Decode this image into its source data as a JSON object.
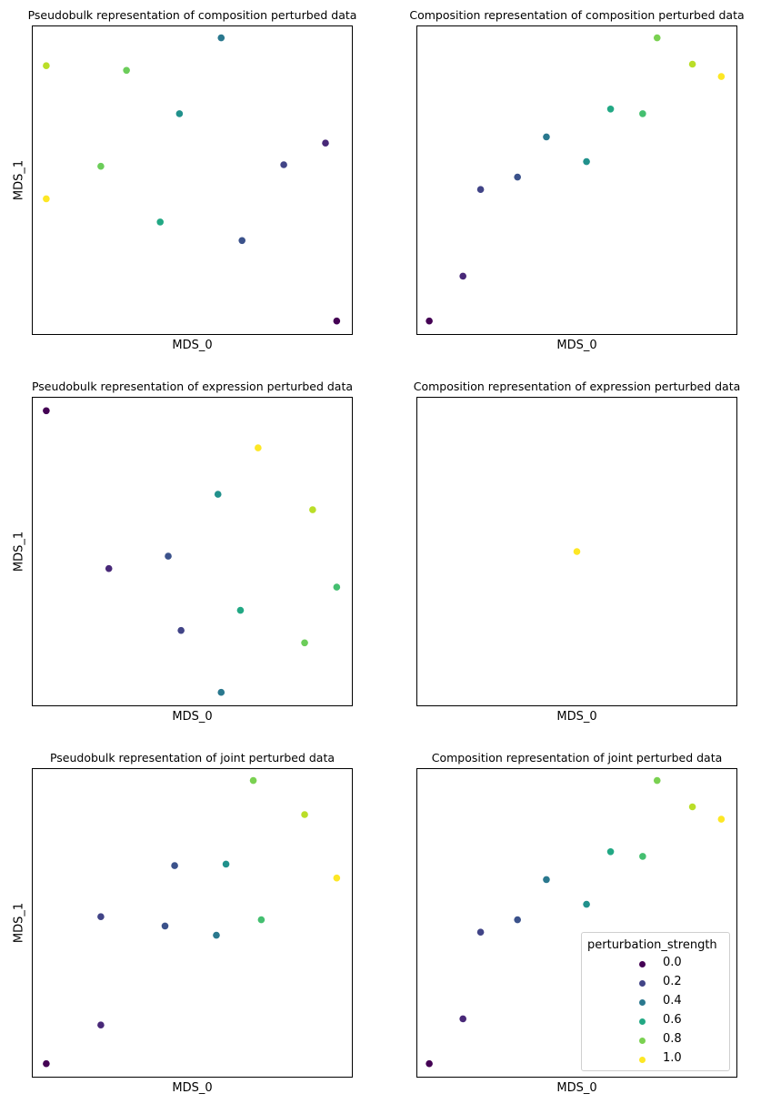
{
  "legend": {
    "title": "perturbation_strength",
    "entries": [
      {
        "label": "0.0",
        "color": "#440154"
      },
      {
        "label": "0.2",
        "color": "#414487"
      },
      {
        "label": "0.4",
        "color": "#2a788e"
      },
      {
        "label": "0.6",
        "color": "#22a884"
      },
      {
        "label": "0.8",
        "color": "#7ad151"
      },
      {
        "label": "1.0",
        "color": "#fde725"
      }
    ]
  },
  "chart_data": [
    {
      "type": "scatter",
      "title": "Pseudobulk representation of composition perturbed data",
      "xlabel": "MDS_0",
      "ylabel": "MDS_1",
      "xlim": [
        0,
        100
      ],
      "ylim": [
        0,
        100
      ],
      "ticks": "hidden",
      "points": [
        {
          "x": 4.5,
          "y": 87,
          "color": "#bade28"
        },
        {
          "x": 29.5,
          "y": 85.5,
          "color": "#6ccd5a"
        },
        {
          "x": 59,
          "y": 96,
          "color": "#2a788e"
        },
        {
          "x": 46,
          "y": 71.5,
          "color": "#21918c"
        },
        {
          "x": 21.5,
          "y": 54.5,
          "color": "#6ccd5a"
        },
        {
          "x": 4.5,
          "y": 44,
          "color": "#fde725"
        },
        {
          "x": 40,
          "y": 36.5,
          "color": "#22a884"
        },
        {
          "x": 65.5,
          "y": 30.5,
          "color": "#3b528b"
        },
        {
          "x": 78.5,
          "y": 55,
          "color": "#414487"
        },
        {
          "x": 91.5,
          "y": 62,
          "color": "#482878"
        },
        {
          "x": 95,
          "y": 4.5,
          "color": "#440154"
        }
      ]
    },
    {
      "type": "scatter",
      "title": "Composition representation of composition perturbed data",
      "xlabel": "MDS_0",
      "ylabel": "",
      "xlim": [
        0,
        100
      ],
      "ylim": [
        0,
        100
      ],
      "ticks": "hidden",
      "points": [
        {
          "x": 4,
          "y": 4.5,
          "color": "#440154"
        },
        {
          "x": 14.5,
          "y": 19,
          "color": "#482878"
        },
        {
          "x": 20,
          "y": 47,
          "color": "#414487"
        },
        {
          "x": 31.5,
          "y": 51,
          "color": "#3b528b"
        },
        {
          "x": 40.5,
          "y": 64,
          "color": "#2a788e"
        },
        {
          "x": 53,
          "y": 56,
          "color": "#21918c"
        },
        {
          "x": 60.5,
          "y": 73,
          "color": "#22a884"
        },
        {
          "x": 70.5,
          "y": 71.5,
          "color": "#44bf70"
        },
        {
          "x": 75,
          "y": 96,
          "color": "#7ad151"
        },
        {
          "x": 86,
          "y": 87.5,
          "color": "#bade28"
        },
        {
          "x": 95,
          "y": 83.5,
          "color": "#fde725"
        }
      ]
    },
    {
      "type": "scatter",
      "title": "Pseudobulk representation of expression perturbed data",
      "xlabel": "MDS_0",
      "ylabel": "MDS_1",
      "xlim": [
        0,
        100
      ],
      "ylim": [
        0,
        100
      ],
      "ticks": "hidden",
      "points": [
        {
          "x": 4.5,
          "y": 95.5,
          "color": "#440154"
        },
        {
          "x": 24,
          "y": 44.5,
          "color": "#482878"
        },
        {
          "x": 42.5,
          "y": 48.5,
          "color": "#3b528b"
        },
        {
          "x": 46.5,
          "y": 24.5,
          "color": "#414487"
        },
        {
          "x": 58,
          "y": 68.5,
          "color": "#21918c"
        },
        {
          "x": 59,
          "y": 4.5,
          "color": "#2a788e"
        },
        {
          "x": 65,
          "y": 31,
          "color": "#22a884"
        },
        {
          "x": 70.5,
          "y": 83.5,
          "color": "#fde725"
        },
        {
          "x": 87.5,
          "y": 63.5,
          "color": "#bade28"
        },
        {
          "x": 85,
          "y": 20.5,
          "color": "#6ccd5a"
        },
        {
          "x": 95,
          "y": 38.5,
          "color": "#44bf70"
        }
      ]
    },
    {
      "type": "scatter",
      "title": "Composition representation of expression perturbed data",
      "xlabel": "MDS_0",
      "ylabel": "",
      "xlim": [
        0,
        100
      ],
      "ylim": [
        0,
        100
      ],
      "ticks": "hidden",
      "points": [
        {
          "x": 50,
          "y": 50,
          "color": "#fde725"
        }
      ]
    },
    {
      "type": "scatter",
      "title": "Pseudobulk representation of joint perturbed data",
      "xlabel": "MDS_0",
      "ylabel": "MDS_1",
      "xlim": [
        0,
        100
      ],
      "ylim": [
        0,
        100
      ],
      "ticks": "hidden",
      "points": [
        {
          "x": 4.5,
          "y": 4.5,
          "color": "#440154"
        },
        {
          "x": 21.5,
          "y": 17,
          "color": "#482878"
        },
        {
          "x": 21.5,
          "y": 52,
          "color": "#414487"
        },
        {
          "x": 41.5,
          "y": 49,
          "color": "#3b528b"
        },
        {
          "x": 44.5,
          "y": 68.5,
          "color": "#3b528b"
        },
        {
          "x": 57.5,
          "y": 46,
          "color": "#2a788e"
        },
        {
          "x": 60.5,
          "y": 69,
          "color": "#21918c"
        },
        {
          "x": 71.5,
          "y": 51,
          "color": "#44bf70"
        },
        {
          "x": 69,
          "y": 96,
          "color": "#7ad151"
        },
        {
          "x": 85,
          "y": 85,
          "color": "#bade28"
        },
        {
          "x": 95,
          "y": 64.5,
          "color": "#fde725"
        }
      ]
    },
    {
      "type": "scatter",
      "title": "Composition representation of joint perturbed data",
      "xlabel": "MDS_0",
      "ylabel": "",
      "xlim": [
        0,
        100
      ],
      "ylim": [
        0,
        100
      ],
      "ticks": "hidden",
      "legend": "lower-right",
      "points": [
        {
          "x": 4,
          "y": 4.5,
          "color": "#440154"
        },
        {
          "x": 14.5,
          "y": 19,
          "color": "#482878"
        },
        {
          "x": 20,
          "y": 47,
          "color": "#414487"
        },
        {
          "x": 31.5,
          "y": 51,
          "color": "#3b528b"
        },
        {
          "x": 40.5,
          "y": 64,
          "color": "#2a788e"
        },
        {
          "x": 53,
          "y": 56,
          "color": "#21918c"
        },
        {
          "x": 60.5,
          "y": 73,
          "color": "#22a884"
        },
        {
          "x": 70.5,
          "y": 71.5,
          "color": "#44bf70"
        },
        {
          "x": 75,
          "y": 96,
          "color": "#7ad151"
        },
        {
          "x": 86,
          "y": 87.5,
          "color": "#bade28"
        },
        {
          "x": 95,
          "y": 83.5,
          "color": "#fde725"
        }
      ]
    }
  ]
}
